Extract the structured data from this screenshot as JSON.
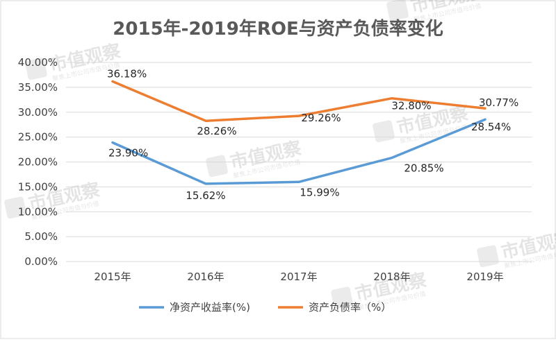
{
  "chart_data": {
    "type": "line",
    "title": "2015年-2019年ROE与资产负债率变化",
    "categories": [
      "2015年",
      "2016年",
      "2017年",
      "2018年",
      "2019年"
    ],
    "series": [
      {
        "name": "净资产收益率(%)",
        "color": "#5b9bd5",
        "values": [
          23.9,
          15.62,
          15.99,
          20.85,
          28.54
        ],
        "labels": [
          "23.90%",
          "15.62%",
          "15.99%",
          "20.85%",
          "28.54%"
        ]
      },
      {
        "name": "资产负债率（%）",
        "color": "#ed7d31",
        "values": [
          36.18,
          28.26,
          29.26,
          32.8,
          30.77
        ],
        "labels": [
          "36.18%",
          "28.26%",
          "29.26%",
          "32.80%",
          "30.77%"
        ]
      }
    ],
    "yticks": [
      "0.00%",
      "5.00%",
      "10.00%",
      "15.00%",
      "20.00%",
      "25.00%",
      "30.00%",
      "35.00%",
      "40.00%"
    ],
    "ylim": [
      0,
      40
    ],
    "xlabel": "",
    "ylabel": "",
    "grid": true,
    "legend_position": "bottom"
  },
  "watermark": {
    "text": "市值观察",
    "subtext": "聚焦上市公司市值与价值"
  }
}
